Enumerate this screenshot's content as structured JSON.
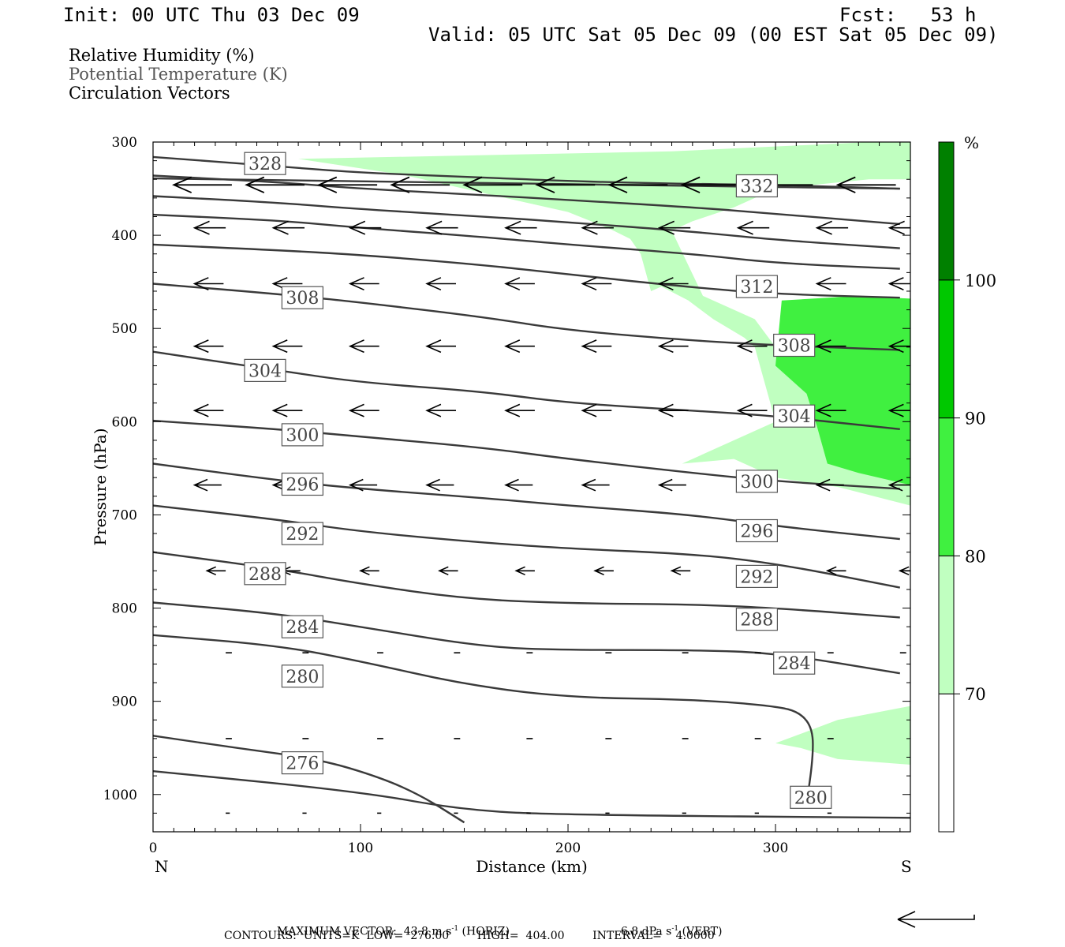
{
  "header": {
    "init": "Init: 00 UTC Thu 03 Dec 09",
    "fcst": "Fcst:   53 h",
    "valid": "Valid: 05 UTC Sat 05 Dec 09 (00 EST Sat 05 Dec 09)"
  },
  "legend": {
    "rh": "Relative Humidity (%)",
    "theta": "Potential Temperature (K)",
    "vectors": "Circulation Vectors"
  },
  "chart_data": {
    "type": "cross-section",
    "x": {
      "label": "Distance (km)",
      "range": [
        0,
        365
      ],
      "ticks": [
        0,
        100,
        200,
        300
      ],
      "tick_labels": [
        "0",
        "100",
        "200",
        "300"
      ],
      "end_left": "N",
      "end_right": "S"
    },
    "y": {
      "label": "Pressure (hPa)",
      "range": [
        300,
        1040
      ],
      "ticks": [
        300,
        400,
        500,
        600,
        700,
        800,
        900,
        1000
      ],
      "tick_labels": [
        "300",
        "400",
        "500",
        "600",
        "700",
        "800",
        "900",
        "1000"
      ]
    },
    "colorbar": {
      "unit": "%",
      "levels": [
        70,
        80,
        90,
        100
      ],
      "level_labels": [
        "70",
        "80",
        "90",
        "100"
      ],
      "colors": [
        "#ffffff",
        "#c0ffc0",
        "#40f040",
        "#00c800",
        "#008000"
      ]
    },
    "rh_regions": [
      {
        "level": 70,
        "color": "#c0ffc0",
        "points": [
          [
            70,
            318
          ],
          [
            250,
            310
          ],
          [
            365,
            298
          ],
          [
            365,
            340
          ],
          [
            345,
            340
          ],
          [
            300,
            350
          ],
          [
            280,
            370
          ],
          [
            260,
            385
          ],
          [
            250,
            395
          ],
          [
            265,
            465
          ],
          [
            290,
            490
          ],
          [
            300,
            520
          ],
          [
            365,
            640
          ],
          [
            365,
            690
          ],
          [
            330,
            670
          ],
          [
            300,
            660
          ],
          [
            280,
            640
          ],
          [
            255,
            645
          ],
          [
            280,
            620
          ],
          [
            300,
            600
          ],
          [
            295,
            560
          ],
          [
            290,
            520
          ],
          [
            285,
            510
          ],
          [
            270,
            490
          ],
          [
            258,
            470
          ],
          [
            245,
            455
          ],
          [
            240,
            460
          ],
          [
            235,
            420
          ],
          [
            230,
            404
          ],
          [
            220,
            393
          ],
          [
            200,
            375
          ],
          [
            150,
            350
          ],
          [
            120,
            335
          ]
        ]
      },
      {
        "level": 70,
        "color": "#c0ffc0",
        "points": [
          [
            300,
            945
          ],
          [
            330,
            920
          ],
          [
            365,
            905
          ],
          [
            365,
            968
          ],
          [
            330,
            962
          ],
          [
            312,
            950
          ]
        ]
      },
      {
        "level": 80,
        "color": "#40f040",
        "points": [
          [
            303,
            470
          ],
          [
            340,
            465
          ],
          [
            365,
            468
          ],
          [
            365,
            668
          ],
          [
            340,
            655
          ],
          [
            325,
            645
          ],
          [
            320,
            605
          ],
          [
            315,
            570
          ],
          [
            300,
            540
          ]
        ]
      }
    ],
    "theta_contours": [
      {
        "value": 276,
        "points": [
          [
            0,
            937
          ],
          [
            40,
            950
          ],
          [
            80,
            962
          ],
          [
            110,
            982
          ],
          [
            130,
            1002
          ],
          [
            150,
            1030
          ]
        ]
      },
      {
        "value": 280,
        "points": [
          [
            0,
            829
          ],
          [
            60,
            840
          ],
          [
            100,
            857
          ],
          [
            150,
            882
          ],
          [
            200,
            896
          ],
          [
            260,
            898
          ],
          [
            300,
            905
          ],
          [
            312,
            912
          ],
          [
            318,
            930
          ],
          [
            318,
            962
          ],
          [
            315,
            1010
          ]
        ]
      },
      {
        "value": 284,
        "points": [
          [
            0,
            794
          ],
          [
            60,
            806
          ],
          [
            100,
            820
          ],
          [
            160,
            842
          ],
          [
            200,
            845
          ],
          [
            260,
            845
          ],
          [
            300,
            848
          ],
          [
            360,
            870
          ]
        ]
      },
      {
        "value": 288,
        "points": [
          [
            0,
            740
          ],
          [
            60,
            758
          ],
          [
            100,
            774
          ],
          [
            150,
            790
          ],
          [
            200,
            795
          ],
          [
            260,
            796
          ],
          [
            300,
            800
          ],
          [
            360,
            810
          ]
        ]
      },
      {
        "value": 292,
        "points": [
          [
            0,
            690
          ],
          [
            60,
            705
          ],
          [
            100,
            718
          ],
          [
            160,
            730
          ],
          [
            200,
            736
          ],
          [
            260,
            742
          ],
          [
            300,
            752
          ],
          [
            360,
            778
          ]
        ]
      },
      {
        "value": 296,
        "points": [
          [
            0,
            645
          ],
          [
            60,
            663
          ],
          [
            100,
            672
          ],
          [
            160,
            682
          ],
          [
            200,
            690
          ],
          [
            260,
            700
          ],
          [
            300,
            712
          ],
          [
            360,
            726
          ]
        ]
      },
      {
        "value": 300,
        "points": [
          [
            0,
            599
          ],
          [
            60,
            608
          ],
          [
            100,
            616
          ],
          [
            160,
            628
          ],
          [
            200,
            640
          ],
          [
            260,
            655
          ],
          [
            300,
            664
          ],
          [
            360,
            672
          ]
        ]
      },
      {
        "value": 304,
        "points": [
          [
            0,
            525
          ],
          [
            60,
            545
          ],
          [
            100,
            558
          ],
          [
            160,
            568
          ],
          [
            200,
            580
          ],
          [
            260,
            588
          ],
          [
            300,
            594
          ],
          [
            360,
            608
          ]
        ]
      },
      {
        "value": 308,
        "points": [
          [
            0,
            452
          ],
          [
            60,
            463
          ],
          [
            100,
            472
          ],
          [
            160,
            488
          ],
          [
            200,
            502
          ],
          [
            260,
            513
          ],
          [
            300,
            518
          ],
          [
            360,
            523
          ]
        ]
      },
      {
        "value": 312,
        "points": [
          [
            0,
            410
          ],
          [
            60,
            416
          ],
          [
            100,
            421
          ],
          [
            160,
            432
          ],
          [
            200,
            442
          ],
          [
            260,
            456
          ],
          [
            300,
            463
          ],
          [
            360,
            467
          ]
        ]
      },
      {
        "value": 316,
        "points": [
          [
            0,
            378
          ],
          [
            60,
            384
          ],
          [
            100,
            392
          ],
          [
            160,
            402
          ],
          [
            200,
            410
          ],
          [
            260,
            420
          ],
          [
            300,
            430
          ],
          [
            360,
            436
          ]
        ]
      },
      {
        "value": 320,
        "points": [
          [
            0,
            358
          ],
          [
            60,
            365
          ],
          [
            100,
            372
          ],
          [
            160,
            380
          ],
          [
            200,
            386
          ],
          [
            260,
            396
          ],
          [
            300,
            405
          ],
          [
            360,
            414
          ]
        ]
      },
      {
        "value": 324,
        "points": [
          [
            0,
            336
          ],
          [
            60,
            343
          ],
          [
            100,
            350
          ],
          [
            160,
            357
          ],
          [
            200,
            362
          ],
          [
            260,
            370
          ],
          [
            300,
            377
          ],
          [
            360,
            388
          ]
        ]
      },
      {
        "value": 328,
        "points": [
          [
            0,
            316
          ],
          [
            60,
            326
          ],
          [
            100,
            333
          ],
          [
            160,
            338
          ],
          [
            200,
            342
          ],
          [
            260,
            345
          ],
          [
            300,
            346
          ],
          [
            360,
            350
          ]
        ]
      },
      {
        "value": 332,
        "points": [
          [
            0,
            339
          ],
          [
            360,
            350
          ]
        ]
      },
      {
        "value": 0,
        "points": [
          [
            0,
            975
          ],
          [
            100,
            997
          ],
          [
            150,
            1017
          ],
          [
            200,
            1022
          ],
          [
            365,
            1025
          ]
        ]
      }
    ],
    "contour_labels": [
      {
        "text": "328",
        "x": 54,
        "y": 323
      },
      {
        "text": "332",
        "x": 291,
        "y": 347
      },
      {
        "text": "312",
        "x": 291,
        "y": 455
      },
      {
        "text": "308",
        "x": 72,
        "y": 467
      },
      {
        "text": "308",
        "x": 309,
        "y": 518
      },
      {
        "text": "304",
        "x": 54,
        "y": 545
      },
      {
        "text": "304",
        "x": 309,
        "y": 594
      },
      {
        "text": "300",
        "x": 72,
        "y": 614
      },
      {
        "text": "300",
        "x": 291,
        "y": 664
      },
      {
        "text": "296",
        "x": 72,
        "y": 667
      },
      {
        "text": "296",
        "x": 291,
        "y": 717
      },
      {
        "text": "292",
        "x": 72,
        "y": 720
      },
      {
        "text": "292",
        "x": 291,
        "y": 766
      },
      {
        "text": "288",
        "x": 54,
        "y": 763
      },
      {
        "text": "288",
        "x": 291,
        "y": 812
      },
      {
        "text": "284",
        "x": 72,
        "y": 820
      },
      {
        "text": "284",
        "x": 309,
        "y": 859
      },
      {
        "text": "280",
        "x": 72,
        "y": 873
      },
      {
        "text": "276",
        "x": 72,
        "y": 966
      },
      {
        "text": "280",
        "x": 317,
        "y": 1003
      }
    ],
    "vector_rows": [
      {
        "p": 346,
        "len": 28,
        "xs": [
          10,
          45,
          80,
          115,
          150,
          185,
          220,
          255,
          290,
          330
        ]
      },
      {
        "p": 392,
        "len": 15,
        "xs": [
          20,
          58,
          95,
          132,
          170,
          207,
          244,
          282,
          320,
          355
        ]
      },
      {
        "p": 452,
        "len": 14,
        "xs": [
          20,
          58,
          95,
          132,
          170,
          207,
          244,
          282,
          320,
          355
        ]
      },
      {
        "p": 519,
        "len": 14,
        "xs": [
          20,
          58,
          95,
          132,
          170,
          207,
          244,
          282,
          320,
          355
        ]
      },
      {
        "p": 588,
        "len": 14,
        "xs": [
          20,
          58,
          95,
          132,
          170,
          207,
          244,
          282,
          320,
          355
        ]
      },
      {
        "p": 668,
        "len": 13,
        "xs": [
          20,
          58,
          95,
          132,
          170,
          207,
          244,
          282,
          320,
          355
        ]
      },
      {
        "p": 760,
        "len": 9,
        "xs": [
          26,
          62,
          100,
          138,
          175,
          213,
          250,
          288,
          325,
          360
        ]
      },
      {
        "p": 848,
        "len": 3,
        "xs": [
          35,
          72,
          108,
          145,
          180,
          218,
          255,
          290,
          325,
          360
        ]
      },
      {
        "p": 940,
        "len": 3,
        "xs": [
          35,
          72,
          108,
          145,
          180,
          218,
          255,
          290,
          325
        ]
      },
      {
        "p": 1020,
        "len": 2,
        "xs": [
          35,
          72,
          108,
          145,
          180,
          218,
          255,
          290,
          325
        ]
      }
    ],
    "max_vector": {
      "horiz": "43.8",
      "vert": "6.8"
    }
  },
  "footer": {
    "max_vector_line": "MAXIMUM VECTOR:  43.8 m s",
    "horiz_unit": " (HORIZ)",
    "vert_value": "6.8 dPa s",
    "vert_unit": " (VERT)",
    "sup": "-1",
    "contours_line": "CONTOURS:  UNITS=K  LOW=  276.00        HIGH=  404.00        INTERVAL=    4.0000"
  }
}
